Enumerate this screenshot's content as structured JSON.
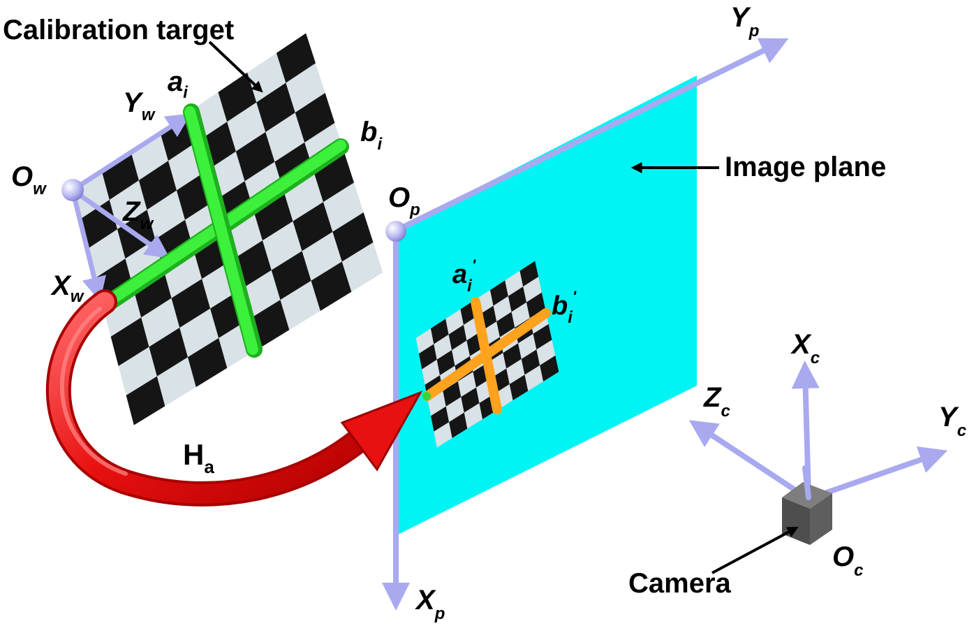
{
  "labels": {
    "calibration_target": "Calibration target",
    "image_plane": "Image plane",
    "camera": "Camera",
    "homography": {
      "main": "H",
      "sub": "a"
    },
    "points": {
      "a_i": {
        "main": "a",
        "sub": "i"
      },
      "b_i": {
        "main": "b",
        "sub": "i"
      },
      "a_i_prime": {
        "main": "a",
        "sub": "i",
        "sup": "'"
      },
      "b_i_prime": {
        "main": "b",
        "sub": "i",
        "sup": "'"
      }
    },
    "axes": {
      "world": {
        "origin": {
          "main": "O",
          "sub": "w"
        },
        "x": {
          "main": "X",
          "sub": "w"
        },
        "y": {
          "main": "Y",
          "sub": "w"
        },
        "z": {
          "main": "Z",
          "sub": "w"
        }
      },
      "image": {
        "origin": {
          "main": "O",
          "sub": "p"
        },
        "x": {
          "main": "X",
          "sub": "p"
        },
        "y": {
          "main": "Y",
          "sub": "p"
        }
      },
      "camera": {
        "origin": {
          "main": "O",
          "sub": "c"
        },
        "x": {
          "main": "X",
          "sub": "c"
        },
        "y": {
          "main": "Y",
          "sub": "c"
        },
        "z": {
          "main": "Z",
          "sub": "c"
        }
      }
    }
  },
  "colors": {
    "axis": "#a9a9f0",
    "axis_dark": "#7c7cd8",
    "image_plane": "#00f4f4",
    "checker_dark": "#151515",
    "checker_light": "#d9e2e6",
    "green_cross": "#2ee62e",
    "orange_cross": "#ffa21e",
    "red_arrow": "#ee1111",
    "camera_box": "#666666"
  },
  "icons": {
    "pointer_arrow": "arrow-icon",
    "camera": "camera-cube-icon"
  }
}
